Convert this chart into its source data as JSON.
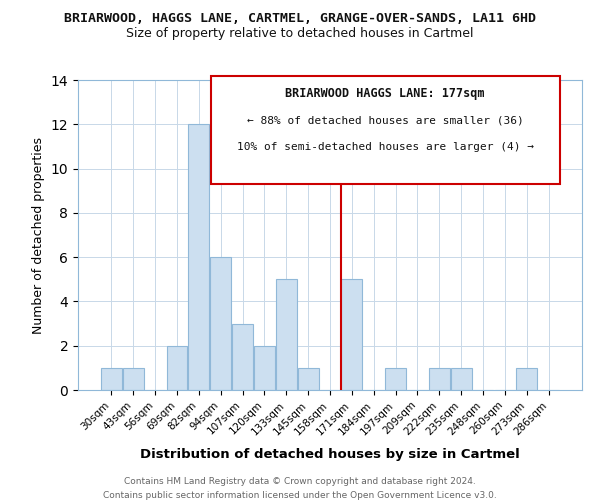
{
  "title": "BRIARWOOD, HAGGS LANE, CARTMEL, GRANGE-OVER-SANDS, LA11 6HD",
  "subtitle": "Size of property relative to detached houses in Cartmel",
  "xlabel": "Distribution of detached houses by size in Cartmel",
  "ylabel": "Number of detached properties",
  "categories": [
    "30sqm",
    "43sqm",
    "56sqm",
    "69sqm",
    "82sqm",
    "94sqm",
    "107sqm",
    "120sqm",
    "133sqm",
    "145sqm",
    "158sqm",
    "171sqm",
    "184sqm",
    "197sqm",
    "209sqm",
    "222sqm",
    "235sqm",
    "248sqm",
    "260sqm",
    "273sqm",
    "286sqm"
  ],
  "values": [
    1,
    1,
    0,
    2,
    12,
    6,
    3,
    2,
    5,
    1,
    0,
    5,
    0,
    1,
    0,
    1,
    1,
    0,
    0,
    1,
    0
  ],
  "bar_color": "#ccdff0",
  "bar_edgecolor": "#90b8d8",
  "vline_x_index": 11,
  "vline_color": "#cc0000",
  "ylim": [
    0,
    14
  ],
  "yticks": [
    0,
    2,
    4,
    6,
    8,
    10,
    12,
    14
  ],
  "annotation_title": "BRIARWOOD HAGGS LANE: 177sqm",
  "annotation_line1": "← 88% of detached houses are smaller (36)",
  "annotation_line2": "10% of semi-detached houses are larger (4) →",
  "footer_line1": "Contains HM Land Registry data © Crown copyright and database right 2024.",
  "footer_line2": "Contains public sector information licensed under the Open Government Licence v3.0.",
  "background_color": "#ffffff",
  "grid_color": "#c8d8e8"
}
